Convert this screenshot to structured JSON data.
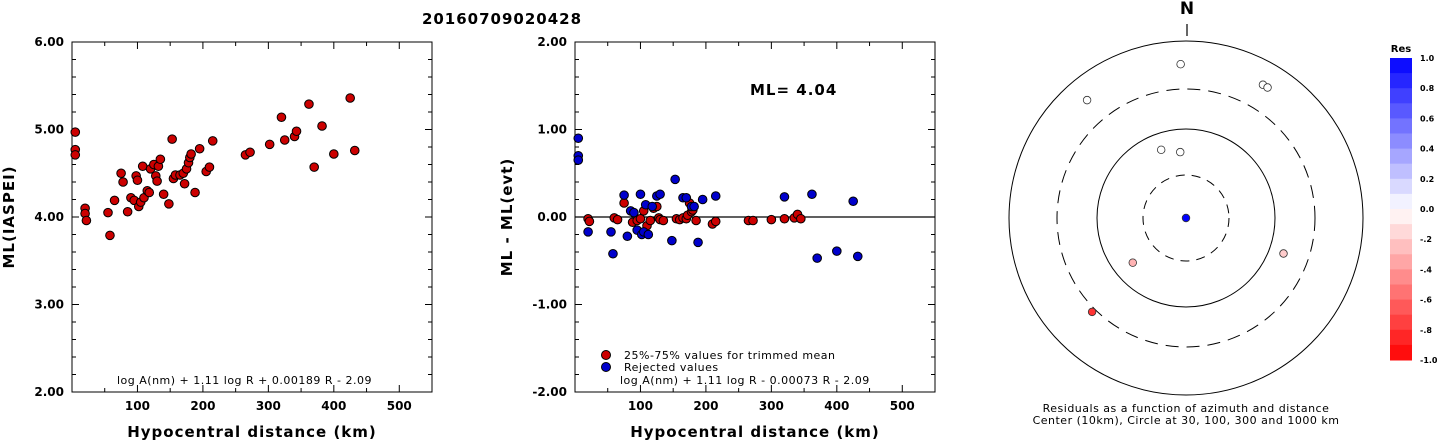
{
  "title": "20160709020428",
  "colors": {
    "red_dot": "#cc0000",
    "blue_dot": "#0000cc",
    "frame": "#000000",
    "background": "#ffffff"
  },
  "chart_data": [
    {
      "type": "scatter",
      "xlabel": "Hypocentral distance (km)",
      "ylabel": "ML(IASPEI)",
      "xlim": [
        0,
        550
      ],
      "ylim": [
        2.0,
        6.0
      ],
      "x_ticks": [
        "100",
        "200",
        "300",
        "400",
        "500"
      ],
      "y_ticks": [
        "2.00",
        "3.00",
        "4.00",
        "5.00",
        "6.00"
      ],
      "grid": false,
      "annotation": "log A(nm) + 1.11 log R + 0.00189 R - 2.09",
      "series": [
        {
          "points": [
            [
              5,
              4.97
            ],
            [
              5,
              4.77
            ],
            [
              5,
              4.71
            ],
            [
              20,
              4.1
            ],
            [
              20,
              4.04
            ],
            [
              22,
              3.96
            ],
            [
              55,
              4.05
            ],
            [
              58,
              3.79
            ],
            [
              65,
              4.19
            ],
            [
              75,
              4.5
            ],
            [
              78,
              4.4
            ],
            [
              85,
              4.06
            ],
            [
              90,
              4.22
            ],
            [
              95,
              4.19
            ],
            [
              98,
              4.47
            ],
            [
              100,
              4.42
            ],
            [
              102,
              4.12
            ],
            [
              105,
              4.17
            ],
            [
              108,
              4.58
            ],
            [
              110,
              4.22
            ],
            [
              115,
              4.3
            ],
            [
              118,
              4.28
            ],
            [
              120,
              4.55
            ],
            [
              125,
              4.6
            ],
            [
              128,
              4.47
            ],
            [
              130,
              4.41
            ],
            [
              132,
              4.58
            ],
            [
              135,
              4.66
            ],
            [
              140,
              4.26
            ],
            [
              148,
              4.15
            ],
            [
              153,
              4.89
            ],
            [
              155,
              4.44
            ],
            [
              158,
              4.48
            ],
            [
              165,
              4.48
            ],
            [
              170,
              4.5
            ],
            [
              172,
              4.38
            ],
            [
              175,
              4.55
            ],
            [
              178,
              4.62
            ],
            [
              180,
              4.68
            ],
            [
              182,
              4.72
            ],
            [
              188,
              4.28
            ],
            [
              195,
              4.78
            ],
            [
              205,
              4.52
            ],
            [
              210,
              4.57
            ],
            [
              215,
              4.87
            ],
            [
              265,
              4.71
            ],
            [
              272,
              4.74
            ],
            [
              302,
              4.83
            ],
            [
              320,
              5.14
            ],
            [
              325,
              4.88
            ],
            [
              340,
              4.92
            ],
            [
              343,
              4.98
            ],
            [
              362,
              5.29
            ],
            [
              370,
              4.57
            ],
            [
              382,
              5.04
            ],
            [
              400,
              4.72
            ],
            [
              425,
              5.36
            ],
            [
              432,
              4.76
            ]
          ]
        }
      ]
    },
    {
      "type": "scatter",
      "xlabel": "Hypocentral distance (km)",
      "ylabel": "ML - ML(evt)",
      "xlim": [
        0,
        550
      ],
      "ylim": [
        -2.0,
        2.0
      ],
      "x_ticks": [
        "100",
        "200",
        "300",
        "400",
        "500"
      ],
      "y_ticks": [
        "-2.00",
        "-1.00",
        "0.00",
        "1.00",
        "2.00"
      ],
      "grid": false,
      "reference_line": 0.0,
      "annotation_top": "ML= 4.04",
      "annotation": "log A(nm) + 1.11 log R - 0.00073 R - 2.09",
      "legend": {
        "position": "bottom-left",
        "items": [
          "25%-75% values for trimmed mean",
          "Rejected values"
        ]
      },
      "series": [
        {
          "name": "25%-75% values for trimmed mean",
          "color": "#cc0000",
          "points": [
            [
              20,
              -0.02
            ],
            [
              22,
              -0.05
            ],
            [
              60,
              -0.01
            ],
            [
              65,
              -0.03
            ],
            [
              75,
              0.16
            ],
            [
              88,
              -0.06
            ],
            [
              95,
              -0.04
            ],
            [
              100,
              -0.02
            ],
            [
              105,
              0.07
            ],
            [
              110,
              -0.1
            ],
            [
              115,
              -0.04
            ],
            [
              120,
              0.1
            ],
            [
              125,
              0.12
            ],
            [
              128,
              -0.01
            ],
            [
              130,
              -0.03
            ],
            [
              135,
              -0.04
            ],
            [
              155,
              -0.02
            ],
            [
              160,
              -0.03
            ],
            [
              165,
              -0.01
            ],
            [
              170,
              -0.02
            ],
            [
              172,
              0.02
            ],
            [
              175,
              0.16
            ],
            [
              178,
              0.06
            ],
            [
              180,
              0.08
            ],
            [
              185,
              -0.04
            ],
            [
              210,
              -0.08
            ],
            [
              215,
              -0.05
            ],
            [
              265,
              -0.04
            ],
            [
              272,
              -0.04
            ],
            [
              300,
              -0.03
            ],
            [
              320,
              -0.02
            ],
            [
              335,
              -0.01
            ],
            [
              340,
              0.03
            ],
            [
              345,
              -0.02
            ]
          ]
        },
        {
          "name": "Rejected values",
          "color": "#0000cc",
          "points": [
            [
              5,
              0.9
            ],
            [
              5,
              0.7
            ],
            [
              5,
              0.65
            ],
            [
              20,
              -0.17
            ],
            [
              55,
              -0.17
            ],
            [
              58,
              -0.42
            ],
            [
              75,
              0.25
            ],
            [
              80,
              -0.22
            ],
            [
              85,
              0.07
            ],
            [
              90,
              0.05
            ],
            [
              95,
              -0.15
            ],
            [
              100,
              0.26
            ],
            [
              102,
              -0.2
            ],
            [
              105,
              -0.17
            ],
            [
              108,
              0.14
            ],
            [
              112,
              -0.2
            ],
            [
              118,
              0.12
            ],
            [
              125,
              0.24
            ],
            [
              130,
              0.26
            ],
            [
              148,
              -0.27
            ],
            [
              153,
              0.43
            ],
            [
              165,
              0.22
            ],
            [
              170,
              0.22
            ],
            [
              178,
              0.12
            ],
            [
              182,
              0.12
            ],
            [
              188,
              -0.29
            ],
            [
              195,
              0.2
            ],
            [
              215,
              0.24
            ],
            [
              320,
              0.23
            ],
            [
              362,
              0.26
            ],
            [
              370,
              -0.47
            ],
            [
              400,
              -0.39
            ],
            [
              425,
              0.18
            ],
            [
              432,
              -0.45
            ]
          ]
        }
      ]
    },
    {
      "type": "scatter",
      "subtype": "polar",
      "north_label": "N",
      "caption_line1": "Residuals as a function of azimuth and distance",
      "caption_line2": "Center (10km), Circle at 30, 100, 300 and 1000 km",
      "colorbar": {
        "title": "Res",
        "ticks": [
          "1.0",
          "0.8",
          "0.6",
          "0.4",
          "0.2",
          "0.0",
          "-.2",
          "-.4",
          "-.6",
          "-.8",
          "-1.0"
        ]
      },
      "rings_km": [
        30,
        100,
        300,
        1000
      ],
      "points": [
        {
          "az": 90,
          "dist": 10,
          "res": 1.0
        },
        {
          "az": -5,
          "dist": 55,
          "res": 0.0
        },
        {
          "az": -20,
          "dist": 65,
          "res": 0.0
        },
        {
          "az": -130,
          "dist": 60,
          "res": -0.3
        },
        {
          "az": 225,
          "dist": 330,
          "res": -0.8
        },
        {
          "az": -40,
          "dist": 560,
          "res": 0.0
        },
        {
          "az": -2,
          "dist": 560,
          "res": 0.0
        },
        {
          "az": 30,
          "dist": 560,
          "res": 0.0
        },
        {
          "az": 32,
          "dist": 560,
          "res": 0.0
        },
        {
          "az": 110,
          "dist": 150,
          "res": -0.2
        }
      ]
    }
  ]
}
